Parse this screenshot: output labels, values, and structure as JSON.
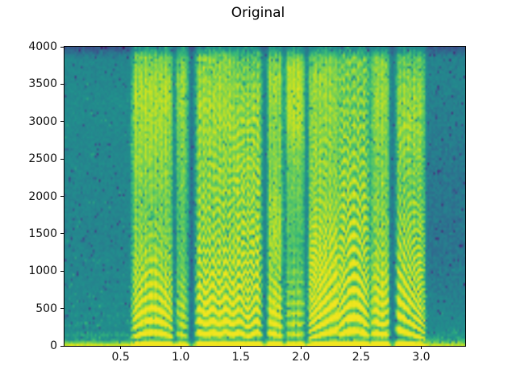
{
  "chart_data": {
    "type": "heatmap",
    "subtype": "spectrogram",
    "title": "Original",
    "xlabel": "",
    "ylabel": "",
    "xlim": [
      0.033,
      3.366
    ],
    "ylim": [
      0,
      4000
    ],
    "xticks": {
      "values": [
        0.5,
        1.0,
        1.5,
        2.0,
        2.5,
        3.0
      ],
      "labels": [
        "0.5",
        "1.0",
        "1.5",
        "2.0",
        "2.5",
        "3.0"
      ]
    },
    "yticks": {
      "values": [
        0,
        500,
        1000,
        1500,
        2000,
        2500,
        3000,
        3500,
        4000
      ],
      "labels": [
        "0",
        "500",
        "1000",
        "1500",
        "2000",
        "2500",
        "3000",
        "3500",
        "4000"
      ]
    },
    "colormap": "viridis",
    "grid": false,
    "legend": null,
    "render": {
      "cols": 200,
      "rows": 124,
      "seed": 7,
      "base_level": 0.44,
      "noise_amp": 0.05,
      "edge_width": 0.03,
      "flicker": 0.13,
      "dc_band": {
        "freq": 80,
        "boost": 0.26
      },
      "top_band": {
        "freq": 3860,
        "darken": 0.17
      },
      "speckle": {
        "dark_p": 0.045,
        "dark_max": 0.16,
        "bright_p": 0.03,
        "bright_amp": 0.07
      }
    },
    "segments": [
      {
        "name": "lead-silence",
        "t": [
          0.033,
          0.585
        ],
        "bands": [
          [
            0,
            0.1
          ],
          [
            200,
            0.04
          ],
          [
            700,
            0.01
          ],
          [
            1500,
            -0.02
          ],
          [
            2500,
            0.0
          ],
          [
            3300,
            0.02
          ],
          [
            4000,
            -0.02
          ]
        ],
        "harm": 0.05,
        "harm_scale": 420,
        "pitch": {
          "shape": "flat",
          "base": 135,
          "delta": 0,
          "rate": 0
        }
      },
      {
        "name": "voiced-arch-1",
        "t": [
          0.595,
          0.935
        ],
        "bands": [
          [
            0,
            0.4
          ],
          [
            400,
            0.44
          ],
          [
            1000,
            0.34
          ],
          [
            1800,
            0.26
          ],
          [
            2700,
            0.32
          ],
          [
            3400,
            0.36
          ],
          [
            3900,
            0.26
          ],
          [
            4000,
            0.22
          ]
        ],
        "harm": 0.3,
        "harm_scale": 1000,
        "pitch": {
          "shape": "arch",
          "base": 105,
          "delta": 60,
          "rate": 0
        }
      },
      {
        "name": "slit-1",
        "t": [
          0.925,
          0.958
        ],
        "bands": [
          [
            0,
            -0.1
          ],
          [
            1500,
            -0.13
          ],
          [
            4000,
            -0.06
          ]
        ],
        "harm": 0,
        "harm_scale": 1,
        "pitch": {
          "shape": "flat",
          "base": 100,
          "delta": 0,
          "rate": 0
        }
      },
      {
        "name": "column-2",
        "t": [
          0.96,
          1.06
        ],
        "bands": [
          [
            0,
            0.3
          ],
          [
            400,
            0.34
          ],
          [
            1200,
            0.22
          ],
          [
            2200,
            0.24
          ],
          [
            3000,
            0.3
          ],
          [
            3600,
            0.32
          ],
          [
            4000,
            0.22
          ]
        ],
        "harm": 0.2,
        "harm_scale": 800,
        "pitch": {
          "shape": "fall",
          "base": 115,
          "delta": 35,
          "rate": 0
        }
      },
      {
        "name": "slit-2",
        "t": [
          1.065,
          1.115
        ],
        "bands": [
          [
            0,
            -0.08
          ],
          [
            1500,
            -0.12
          ],
          [
            4000,
            -0.06
          ]
        ],
        "harm": 0,
        "harm_scale": 1,
        "pitch": {
          "shape": "flat",
          "base": 100,
          "delta": 0,
          "rate": 0
        }
      },
      {
        "name": "voiced-steady",
        "t": [
          1.125,
          1.45
        ],
        "bands": [
          [
            0,
            0.42
          ],
          [
            300,
            0.48
          ],
          [
            900,
            0.38
          ],
          [
            1600,
            0.3
          ],
          [
            2400,
            0.3
          ],
          [
            3200,
            0.34
          ],
          [
            3900,
            0.28
          ],
          [
            4000,
            0.22
          ]
        ],
        "harm": 0.3,
        "harm_scale": 1800,
        "pitch": {
          "shape": "wobble",
          "base": 150,
          "delta": 12,
          "rate": 9
        }
      },
      {
        "name": "voiced-wavy",
        "t": [
          1.45,
          1.675
        ],
        "bands": [
          [
            0,
            0.4
          ],
          [
            300,
            0.44
          ],
          [
            1000,
            0.36
          ],
          [
            1800,
            0.32
          ],
          [
            2600,
            0.32
          ],
          [
            3400,
            0.3
          ],
          [
            4000,
            0.2
          ]
        ],
        "harm": 0.3,
        "harm_scale": 2200,
        "pitch": {
          "shape": "wobble",
          "base": 140,
          "delta": 20,
          "rate": 7
        }
      },
      {
        "name": "slit-3",
        "t": [
          1.675,
          1.715
        ],
        "bands": [
          [
            0,
            -0.05
          ],
          [
            2000,
            -0.08
          ],
          [
            4000,
            -0.04
          ]
        ],
        "harm": 0,
        "harm_scale": 1,
        "pitch": {
          "shape": "flat",
          "base": 100,
          "delta": 0,
          "rate": 0
        }
      },
      {
        "name": "column-3",
        "t": [
          1.72,
          1.845
        ],
        "bands": [
          [
            0,
            0.44
          ],
          [
            500,
            0.44
          ],
          [
            900,
            0.32
          ],
          [
            1700,
            0.35
          ],
          [
            2300,
            0.28
          ],
          [
            3000,
            0.3
          ],
          [
            3600,
            0.34
          ],
          [
            4000,
            0.22
          ]
        ],
        "harm": 0.3,
        "harm_scale": 700,
        "pitch": {
          "shape": "fall",
          "base": 120,
          "delta": 40,
          "rate": 0
        }
      },
      {
        "name": "column-4",
        "t": [
          1.875,
          2.03
        ],
        "bands": [
          [
            0,
            0.3
          ],
          [
            500,
            0.3
          ],
          [
            1200,
            0.2
          ],
          [
            2400,
            0.26
          ],
          [
            3100,
            0.38
          ],
          [
            3700,
            0.36
          ],
          [
            4000,
            0.22
          ]
        ],
        "harm": 0.18,
        "harm_scale": 700,
        "pitch": {
          "shape": "flat",
          "base": 140,
          "delta": 0,
          "rate": 0
        }
      },
      {
        "name": "slit-4",
        "t": [
          2.025,
          2.06
        ],
        "bands": [
          [
            0,
            -0.06
          ],
          [
            2000,
            -0.1
          ],
          [
            4000,
            -0.05
          ]
        ],
        "harm": 0,
        "harm_scale": 1,
        "pitch": {
          "shape": "flat",
          "base": 100,
          "delta": 0,
          "rate": 0
        }
      },
      {
        "name": "voiced-rising-diagonals",
        "t": [
          2.06,
          2.31
        ],
        "bands": [
          [
            0,
            0.4
          ],
          [
            400,
            0.48
          ],
          [
            1200,
            0.4
          ],
          [
            2000,
            0.3
          ],
          [
            2800,
            0.3
          ],
          [
            3600,
            0.32
          ],
          [
            4000,
            0.22
          ]
        ],
        "harm": 0.32,
        "harm_scale": 1400,
        "pitch": {
          "shape": "rise",
          "base": 85,
          "delta": 115,
          "rate": 0
        }
      },
      {
        "name": "voiced-dome-chevrons",
        "t": [
          2.315,
          2.565
        ],
        "bands": [
          [
            0,
            0.42
          ],
          [
            400,
            0.46
          ],
          [
            1200,
            0.36
          ],
          [
            2200,
            0.3
          ],
          [
            3000,
            0.28
          ],
          [
            3800,
            0.26
          ],
          [
            4000,
            0.2
          ]
        ],
        "harm": 0.3,
        "harm_scale": 2800,
        "pitch": {
          "shape": "arch",
          "base": 125,
          "delta": 60,
          "rate": 0
        }
      },
      {
        "name": "column-5",
        "t": [
          2.585,
          2.735
        ],
        "bands": [
          [
            0,
            0.42
          ],
          [
            600,
            0.42
          ],
          [
            1400,
            0.3
          ],
          [
            2400,
            0.28
          ],
          [
            3200,
            0.32
          ],
          [
            3800,
            0.3
          ],
          [
            4000,
            0.2
          ]
        ],
        "harm": 0.28,
        "harm_scale": 1100,
        "pitch": {
          "shape": "wobble",
          "base": 145,
          "delta": 10,
          "rate": 8
        }
      },
      {
        "name": "slit-5",
        "t": [
          2.735,
          2.785
        ],
        "bands": [
          [
            0,
            -0.06
          ],
          [
            1500,
            -0.1
          ],
          [
            4000,
            -0.05
          ]
        ],
        "harm": 0,
        "harm_scale": 1,
        "pitch": {
          "shape": "flat",
          "base": 100,
          "delta": 0,
          "rate": 0
        }
      },
      {
        "name": "voiced-falling-diagonals",
        "t": [
          2.79,
          3.03
        ],
        "bands": [
          [
            0,
            0.38
          ],
          [
            500,
            0.42
          ],
          [
            1300,
            0.32
          ],
          [
            2200,
            0.26
          ],
          [
            2900,
            0.32
          ],
          [
            3500,
            0.3
          ],
          [
            4000,
            0.2
          ]
        ],
        "harm": 0.32,
        "harm_scale": 1600,
        "pitch": {
          "shape": "fall",
          "base": 80,
          "delta": 130,
          "rate": 0
        }
      },
      {
        "name": "tail-quiet",
        "t": [
          3.035,
          3.37
        ],
        "bands": [
          [
            0,
            0.12
          ],
          [
            250,
            0.02
          ],
          [
            700,
            -0.05
          ],
          [
            1400,
            -0.09
          ],
          [
            2600,
            -0.07
          ],
          [
            3600,
            -0.03
          ],
          [
            4000,
            -0.02
          ]
        ],
        "harm": 0,
        "harm_scale": 1,
        "pitch": {
          "shape": "flat",
          "base": 120,
          "delta": 0,
          "rate": 0
        }
      }
    ]
  }
}
